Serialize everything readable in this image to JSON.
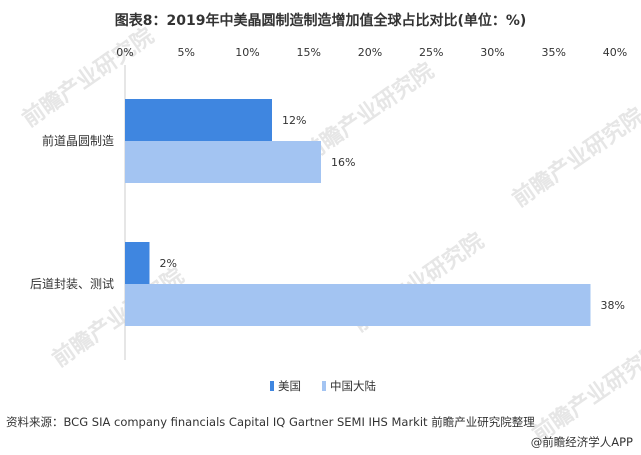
{
  "watermark_text": "前瞻产业研究院",
  "title": "图表8：2019年中美晶圆制造制造增加值全球占比对比(单位：%)",
  "source": "资料来源：BCG SIA company financials Capital IQ Gartner SEMI IHS Markit 前瞻产业研究院整理",
  "credit": "@前瞻经济学人APP",
  "chart_data": {
    "type": "bar",
    "orientation": "horizontal",
    "categories": [
      "前道晶圆制造",
      "后道封装、测试"
    ],
    "series": [
      {
        "name": "美国",
        "values": [
          12,
          2
        ],
        "color": "#3f86e0"
      },
      {
        "name": "中国大陆",
        "values": [
          16,
          38
        ],
        "color": "#a3c4f2"
      }
    ],
    "value_labels": [
      [
        "12%",
        "2%"
      ],
      [
        "16%",
        "38%"
      ]
    ],
    "x_ticks": [
      "0%",
      "5%",
      "10%",
      "15%",
      "20%",
      "25%",
      "30%",
      "35%",
      "40%"
    ],
    "xlim": [
      0,
      40
    ],
    "xaxis_position": "top",
    "grid": false,
    "legend_position": "bottom"
  }
}
